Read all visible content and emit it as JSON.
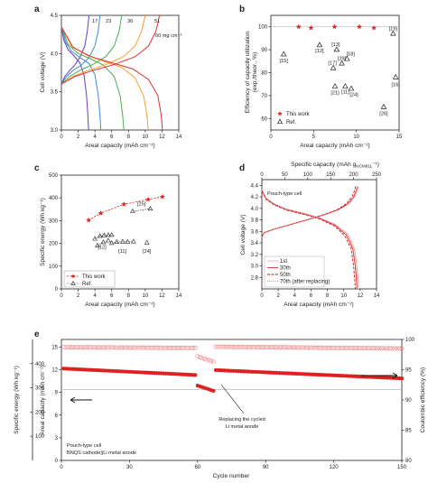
{
  "chart_data": [
    {
      "panel": "a",
      "type": "line",
      "xlabel": "Areal capacity (mAh cm⁻²)",
      "ylabel": "Cell voltage (V)",
      "xlim": [
        0,
        14
      ],
      "ylim": [
        3.0,
        4.5
      ],
      "xticks": [
        "0",
        "2",
        "4",
        "6",
        "8",
        "10",
        "12",
        "14"
      ],
      "yticks": [
        "3.0",
        "3.5",
        "4.0",
        "4.5"
      ],
      "annotations": [
        "17",
        "23",
        "36",
        "51",
        "60 mg cm⁻²"
      ],
      "series": [
        {
          "color": "#6a3fbf",
          "x": [
            0,
            0.3,
            0.8,
            1.5,
            2.2,
            2.7,
            3.0,
            3.15,
            3.25
          ],
          "y": [
            4.35,
            4.17,
            4.05,
            3.97,
            3.88,
            3.72,
            3.45,
            3.2,
            3.0
          ],
          "charge_x": [
            0,
            0.4,
            1.0,
            1.6,
            2.2,
            2.8,
            3.1,
            3.3
          ],
          "charge_y": [
            3.6,
            3.7,
            3.78,
            3.85,
            3.95,
            4.1,
            4.3,
            4.5
          ]
        },
        {
          "color": "#3a8bd8",
          "x": [
            0,
            0.5,
            1.2,
            2.2,
            3.3,
            4.0,
            4.4,
            4.6,
            4.7
          ],
          "y": [
            4.35,
            4.15,
            4.03,
            3.95,
            3.87,
            3.72,
            3.45,
            3.2,
            3.0
          ],
          "charge_x": [
            0,
            0.6,
            1.4,
            2.4,
            3.3,
            4.0,
            4.4,
            4.6
          ],
          "charge_y": [
            3.6,
            3.7,
            3.78,
            3.85,
            3.95,
            4.1,
            4.3,
            4.5
          ]
        },
        {
          "color": "#4cae4c",
          "x": [
            0,
            0.8,
            2.0,
            3.5,
            5.0,
            6.3,
            7.0,
            7.3,
            7.45
          ],
          "y": [
            4.35,
            4.12,
            4.0,
            3.93,
            3.85,
            3.7,
            3.45,
            3.2,
            3.0
          ],
          "charge_x": [
            0,
            1.0,
            2.2,
            3.8,
            5.3,
            6.3,
            6.9,
            7.2
          ],
          "charge_y": [
            3.6,
            3.7,
            3.78,
            3.86,
            3.96,
            4.1,
            4.3,
            4.5
          ]
        },
        {
          "color": "#f2a033",
          "x": [
            0,
            1.2,
            3.0,
            5.0,
            7.2,
            8.8,
            9.8,
            10.2,
            10.35
          ],
          "y": [
            4.35,
            4.1,
            3.98,
            3.9,
            3.82,
            3.68,
            3.45,
            3.2,
            3.0
          ],
          "charge_x": [
            0,
            1.4,
            3.2,
            5.4,
            7.4,
            8.8,
            9.6,
            10.0
          ],
          "charge_y": [
            3.6,
            3.7,
            3.78,
            3.86,
            3.96,
            4.1,
            4.3,
            4.5
          ]
        },
        {
          "color": "#e03030",
          "x": [
            0,
            1.4,
            3.5,
            6.0,
            8.5,
            10.4,
            11.5,
            11.9,
            12.05
          ],
          "y": [
            4.35,
            4.08,
            3.96,
            3.88,
            3.8,
            3.66,
            3.45,
            3.2,
            3.0
          ],
          "charge_x": [
            0,
            1.6,
            3.8,
            6.4,
            8.8,
            10.4,
            11.3,
            11.7
          ],
          "charge_y": [
            3.6,
            3.7,
            3.78,
            3.86,
            3.96,
            4.1,
            4.3,
            4.5
          ]
        }
      ]
    },
    {
      "panel": "b",
      "type": "scatter",
      "xlabel": "Areal capacity (mAh cm⁻²)",
      "ylabel": "Efficiency of capacity utilization (exp./theor., %)",
      "xlim": [
        0,
        15
      ],
      "ylim": [
        55,
        105
      ],
      "xticks": [
        "0",
        "5",
        "10",
        "15"
      ],
      "yticks": [
        "60",
        "70",
        "80",
        "90",
        "100"
      ],
      "legend": {
        "placement": "bottom-left",
        "entries": [
          "This work",
          "Ref."
        ]
      },
      "series": [
        {
          "name": "This work",
          "marker": "star",
          "color": "#e02020",
          "x": [
            3.25,
            4.7,
            7.45,
            10.35,
            12.05
          ],
          "y": [
            100,
            99.5,
            100,
            100,
            99.5
          ]
        },
        {
          "name": "Ref.",
          "marker": "triangle",
          "color": "#222222",
          "points": [
            {
              "x": 1.5,
              "y": 88,
              "label": "[15]"
            },
            {
              "x": 5.7,
              "y": 92,
              "label": "[12]"
            },
            {
              "x": 7.7,
              "y": 90,
              "label": "[13]"
            },
            {
              "x": 7.3,
              "y": 82,
              "label": "[17]"
            },
            {
              "x": 8.3,
              "y": 84,
              "label": "[29]"
            },
            {
              "x": 8.9,
              "y": 86,
              "label": "[18]"
            },
            {
              "x": 7.5,
              "y": 74,
              "label": "[21]"
            },
            {
              "x": 8.7,
              "y": 74,
              "label": "[11]"
            },
            {
              "x": 9.4,
              "y": 73,
              "label": "[24]"
            },
            {
              "x": 13.2,
              "y": 65,
              "label": "[26]"
            },
            {
              "x": 14.3,
              "y": 97,
              "label": "[19]"
            },
            {
              "x": 14.6,
              "y": 78,
              "label": "[16]"
            }
          ]
        }
      ]
    },
    {
      "panel": "c",
      "type": "scatter",
      "xlabel": "Areal capacity (mAh cm⁻²)",
      "ylabel": "Specific energy (Wh kg⁻¹)",
      "xlim": [
        0,
        14
      ],
      "ylim": [
        0,
        500
      ],
      "xticks": [
        "0",
        "2",
        "4",
        "6",
        "8",
        "10",
        "12",
        "14"
      ],
      "yticks": [
        "0",
        "100",
        "200",
        "300",
        "400",
        "500"
      ],
      "legend": {
        "placement": "bottom-left",
        "entries": [
          "This work",
          "Ref."
        ]
      },
      "series": [
        {
          "name": "This work",
          "marker": "star",
          "color": "#e02020",
          "x": [
            3.25,
            4.7,
            7.45,
            10.35,
            12.05
          ],
          "y": [
            302,
            333,
            372,
            393,
            405
          ]
        },
        {
          "name": "Ref.",
          "marker": "triangle",
          "color": "#222222",
          "groups": [
            {
              "label": "[25]",
              "x": [
                8.5,
                10.6
              ],
              "y": [
                341,
                352
              ]
            },
            {
              "label": "[12]",
              "x": [
                4.0,
                4.6,
                5.1,
                5.6,
                6.0
              ],
              "y": [
                220,
                232,
                235,
                236,
                237
              ]
            },
            {
              "label": "",
              "x": [
                4.3,
                5.0,
                5.6
              ],
              "y": [
                190,
                205,
                212
              ]
            },
            {
              "label": "[11]",
              "x": [
                6.0,
                6.6,
                7.3,
                7.9,
                8.6
              ],
              "y": [
                201,
                206,
                207,
                207,
                208
              ]
            },
            {
              "label": "[24]",
              "x": [
                10.2
              ],
              "y": [
                203
              ]
            }
          ]
        }
      ]
    },
    {
      "panel": "d",
      "type": "line",
      "title": "Pouch-type cell",
      "xlabel": "Areal capacity (mAh cm⁻²)",
      "x2label": "Specific capacity (mAh g",
      "x2label_sub": "NCM811",
      "x2label_sup": "⁻¹)",
      "ylabel": "Cell voltage (V)",
      "xlim": [
        0,
        14
      ],
      "x2lim": [
        0,
        250
      ],
      "ylim": [
        2.6,
        4.5
      ],
      "xticks": [
        "0",
        "2",
        "4",
        "6",
        "8",
        "10",
        "12",
        "14"
      ],
      "x2ticks": [
        "0",
        "50",
        "100",
        "150",
        "200",
        "250"
      ],
      "yticks": [
        "2.8",
        "3.0",
        "3.2",
        "3.4",
        "3.6",
        "3.8",
        "4.0",
        "4.2",
        "4.4"
      ],
      "legend": {
        "placement": "bottom-left",
        "entries": [
          "1st",
          "30th",
          "50th",
          "70th (after replacing)"
        ]
      },
      "series": [
        {
          "name": "1st",
          "color": "#f2a8a8",
          "width": 0.9,
          "dash": "",
          "dis_x": [
            0,
            0.5,
            1.5,
            3,
            5,
            7,
            9,
            10.5,
            11.3,
            11.6,
            11.75,
            11.8
          ],
          "dis_y": [
            4.32,
            4.18,
            4.08,
            3.99,
            3.92,
            3.84,
            3.72,
            3.55,
            3.3,
            3.0,
            2.75,
            2.6
          ],
          "ch_x": [
            0,
            0.3,
            1.5,
            3.5,
            5.5,
            7.5,
            9.3,
            10.6,
            11.3,
            11.7,
            11.85
          ],
          "ch_y": [
            3.5,
            3.58,
            3.64,
            3.72,
            3.8,
            3.88,
            3.97,
            4.08,
            4.2,
            4.32,
            4.38
          ]
        },
        {
          "name": "30th",
          "color": "#e03030",
          "width": 0.9,
          "dash": "",
          "dis_x": [
            0,
            0.5,
            1.5,
            3,
            5,
            7,
            8.9,
            10.3,
            11.1,
            11.4,
            11.55,
            11.6
          ],
          "dis_y": [
            4.31,
            4.17,
            4.07,
            3.98,
            3.91,
            3.83,
            3.71,
            3.54,
            3.3,
            3.0,
            2.75,
            2.6
          ],
          "ch_x": [
            0,
            0.3,
            1.5,
            3.5,
            5.5,
            7.4,
            9.2,
            10.5,
            11.2,
            11.55,
            11.65
          ],
          "ch_y": [
            3.5,
            3.58,
            3.64,
            3.72,
            3.8,
            3.88,
            3.97,
            4.08,
            4.2,
            4.32,
            4.38
          ]
        },
        {
          "name": "50th",
          "color": "#c01818",
          "width": 0.9,
          "dash": "3,1.5",
          "dis_x": [
            0,
            0.5,
            1.5,
            3,
            5,
            7,
            8.8,
            10.1,
            10.9,
            11.2,
            11.35,
            11.4
          ],
          "dis_y": [
            4.3,
            4.16,
            4.06,
            3.97,
            3.9,
            3.82,
            3.7,
            3.53,
            3.3,
            3.0,
            2.75,
            2.6
          ],
          "ch_x": [
            0,
            0.3,
            1.5,
            3.5,
            5.5,
            7.3,
            9.1,
            10.3,
            11.0,
            11.35,
            11.45
          ],
          "ch_y": [
            3.5,
            3.58,
            3.64,
            3.72,
            3.8,
            3.88,
            3.97,
            4.08,
            4.2,
            4.32,
            4.38
          ]
        },
        {
          "name": "70th (after replacing)",
          "color": "#f08a8a",
          "width": 0.9,
          "dash": "1,1.2",
          "dis_x": [
            0,
            0.5,
            1.5,
            3,
            5,
            7,
            9.0,
            10.4,
            11.2,
            11.5,
            11.65,
            11.7
          ],
          "dis_y": [
            4.32,
            4.17,
            4.07,
            3.98,
            3.91,
            3.83,
            3.71,
            3.54,
            3.3,
            3.0,
            2.75,
            2.6
          ],
          "ch_x": [
            0,
            0.3,
            1.5,
            3.5,
            5.5,
            7.4,
            9.3,
            10.6,
            11.3,
            11.6,
            11.7
          ],
          "ch_y": [
            3.5,
            3.58,
            3.64,
            3.72,
            3.8,
            3.88,
            3.97,
            4.08,
            4.2,
            4.32,
            4.38
          ]
        }
      ]
    },
    {
      "panel": "e",
      "type": "scatter",
      "xlabel": "Cycle number",
      "ylabel_left": "Areal capacity (mAh cm⁻²)",
      "ylabel_far_left": "Specific energy (Wh kg⁻¹)",
      "ylabel_right": "Coulombic efficiency (%)",
      "xlim": [
        0,
        150
      ],
      "ylim": [
        0,
        16
      ],
      "y2lim": [
        80,
        100
      ],
      "xticks": [
        "0",
        "30",
        "60",
        "90",
        "120",
        "150"
      ],
      "yticks": [
        "0",
        "3",
        "6",
        "9",
        "12",
        "15"
      ],
      "y2ticks": [
        "80",
        "85",
        "90",
        "95",
        "100"
      ],
      "far_left_ticks": [
        "100",
        "200",
        "300",
        "400"
      ],
      "reference_line_y": 9.4,
      "annotations": [
        "Replacing the cycled",
        "Li metal anode",
        "Pouch-type cell",
        "BNQS cathode||Li metal anode"
      ],
      "series": [
        {
          "name": "Areal capacity",
          "marker": "filled-circle",
          "color": "#e02020",
          "segments": [
            {
              "x_start": 1,
              "x_end": 59,
              "y_start": 12.15,
              "y_end": 11.3
            },
            {
              "x_start": 60,
              "x_end": 67,
              "y_start": 9.9,
              "y_end": 9.2
            },
            {
              "x_start": 68,
              "x_end": 150,
              "y_start": 11.95,
              "y_end": 10.85
            }
          ]
        },
        {
          "name": "Coulombic efficiency",
          "marker": "open-circle",
          "color": "#f08080",
          "segments": [
            {
              "x_start": 1,
              "x_end": 59,
              "y_start": 98.7,
              "y_end": 98.6
            },
            {
              "x_start": 60,
              "x_end": 67,
              "y_start": 97.2,
              "y_end": 96.3
            },
            {
              "x_start": 68,
              "x_end": 150,
              "y_start": 98.8,
              "y_end": 98.5
            }
          ]
        }
      ]
    }
  ]
}
